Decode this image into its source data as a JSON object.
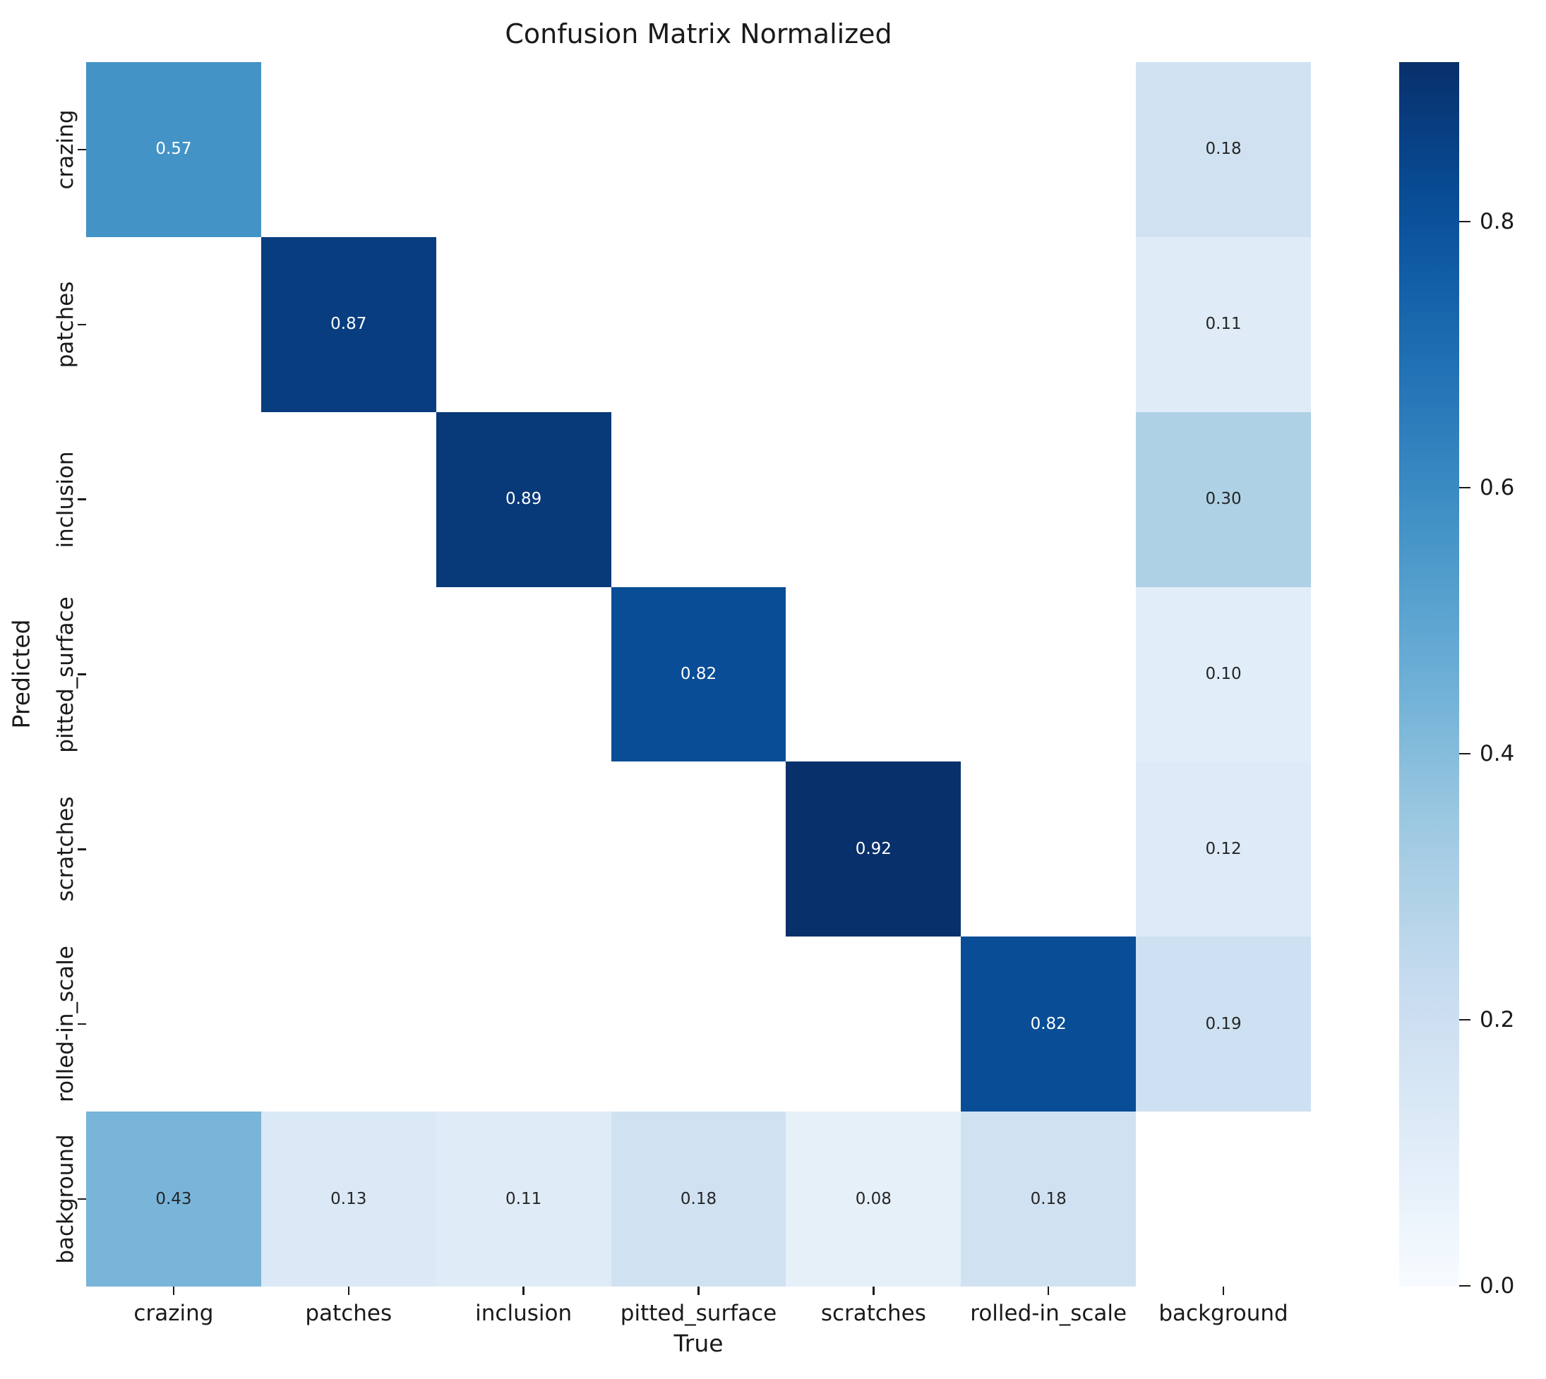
{
  "chart_data": {
    "type": "heatmap",
    "title": "Confusion Matrix Normalized",
    "xlabel": "True",
    "ylabel": "Predicted",
    "x_categories": [
      "crazing",
      "patches",
      "inclusion",
      "pitted_surface",
      "scratches",
      "rolled-in_scale",
      "background"
    ],
    "y_categories": [
      "crazing",
      "patches",
      "inclusion",
      "pitted_surface",
      "scratches",
      "rolled-in_scale",
      "background"
    ],
    "matrix": [
      [
        0.57,
        0,
        0,
        0,
        0,
        0,
        0.18
      ],
      [
        0,
        0.87,
        0,
        0,
        0,
        0,
        0.11
      ],
      [
        0,
        0,
        0.89,
        0,
        0,
        0,
        0.3
      ],
      [
        0,
        0,
        0,
        0.82,
        0,
        0,
        0.1
      ],
      [
        0,
        0,
        0,
        0,
        0.92,
        0,
        0.12
      ],
      [
        0,
        0,
        0,
        0,
        0,
        0.82,
        0.19
      ],
      [
        0.43,
        0.13,
        0.11,
        0.18,
        0.08,
        0.18,
        0
      ]
    ],
    "annotation_format": "two-decimals, zero cells not annotated",
    "colormap": "Blues",
    "colormap_anchors": [
      "#f7fbff",
      "#deebf7",
      "#c6dbef",
      "#9ecae1",
      "#6baed6",
      "#4292c6",
      "#2171b5",
      "#08519c",
      "#08306b"
    ],
    "vmin": 0.0,
    "vmax": 0.92,
    "zero_cell_color": "#ffffff",
    "annotation_colors": {
      "on_dark": "#ffffff",
      "on_light": "#262626"
    },
    "axis_text_color": "#1a1a1a",
    "grid": false,
    "colorbar": {
      "position": "right",
      "ticks": [
        0.8,
        0.6,
        0.4,
        0.2,
        0.0
      ],
      "tick_label_format": "one-decimal"
    }
  }
}
